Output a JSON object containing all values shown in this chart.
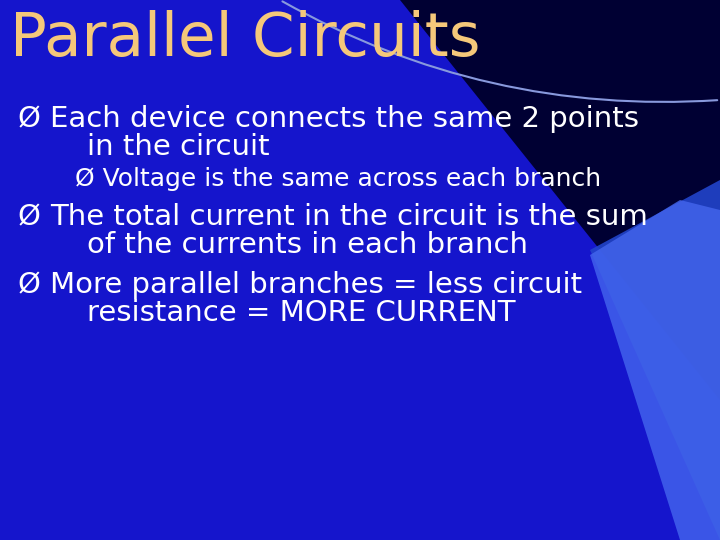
{
  "title": "Parallel Circuits",
  "title_color": "#F5C87A",
  "title_fontsize": 44,
  "title_font": "DejaVu Sans",
  "bg_color_top": "#000080",
  "bg_color_main": "#1515CC",
  "bullet_color": "#FFFFFF",
  "bullet_fontsize": 21,
  "sub_bullet_fontsize": 18,
  "bullet_marker": "Ø",
  "bullet1_line1": "Each device connects the same 2 points",
  "bullet1_line2": "    in the circuit",
  "bullet2_line1": "Voltage is the same across each branch",
  "bullet3_line1": "The total current in the circuit is the sum",
  "bullet3_line2": "    of the currents in each branch",
  "bullet4_line1": "More parallel branches = less circuit",
  "bullet4_line2": "    resistance = MORE CURRENT",
  "wedge_color": "#3355EE",
  "wedge_color2": "#5577FF",
  "arc_color": "#8899FF"
}
